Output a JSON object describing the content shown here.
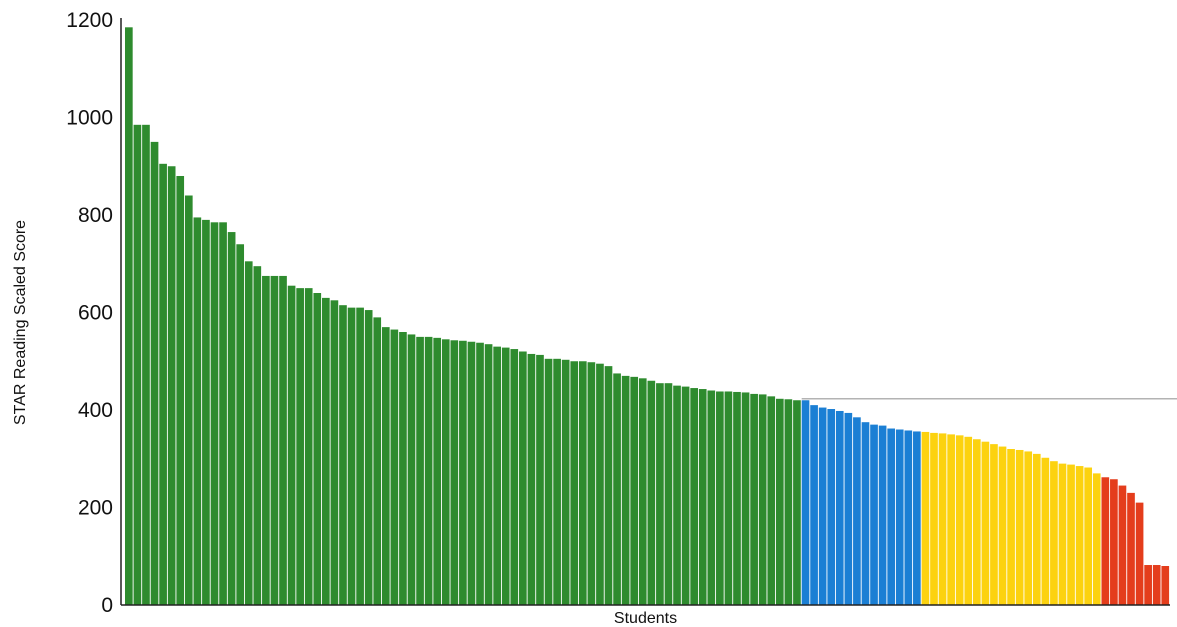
{
  "chart_data": {
    "type": "bar",
    "xlabel": "Students",
    "ylabel": "STAR Reading Scaled Score",
    "ylim": [
      0,
      1200
    ],
    "yticks": [
      0,
      200,
      400,
      600,
      800,
      1000,
      1200
    ],
    "benchmark": 423,
    "colors": {
      "green": "#2e8b2e",
      "blue": "#1b7fd4",
      "yellow": "#fcd20f",
      "red": "#e43d1c",
      "benchmark_line": "#9a9a9a"
    },
    "series": [
      {
        "color": "green",
        "values": [
          1185,
          985,
          985,
          950,
          905,
          900,
          880,
          840,
          795,
          790,
          785,
          785,
          765,
          740,
          705,
          695,
          675,
          675,
          675,
          655,
          650,
          650,
          640,
          630,
          625,
          615,
          610,
          610,
          605,
          590,
          570,
          565,
          560,
          555,
          550,
          550,
          548,
          545,
          543,
          542,
          540,
          538,
          535,
          530,
          528,
          525,
          520,
          515,
          513,
          505,
          505,
          503,
          500,
          500,
          498,
          495,
          490,
          475,
          470,
          468,
          465,
          460,
          455,
          455,
          450,
          448,
          445,
          443,
          440,
          438,
          438,
          437,
          436,
          433,
          432,
          428,
          423,
          422,
          420
        ]
      },
      {
        "color": "blue",
        "values": [
          420,
          410,
          405,
          402,
          398,
          394,
          385,
          375,
          370,
          368,
          362,
          360,
          358,
          356
        ]
      },
      {
        "color": "yellow",
        "values": [
          355,
          353,
          352,
          350,
          348,
          345,
          340,
          335,
          330,
          325,
          320,
          318,
          315,
          310,
          302,
          295,
          290,
          288,
          285,
          282,
          270
        ]
      },
      {
        "color": "red",
        "values": [
          262,
          258,
          245,
          230,
          210,
          82,
          82,
          80
        ]
      }
    ]
  }
}
